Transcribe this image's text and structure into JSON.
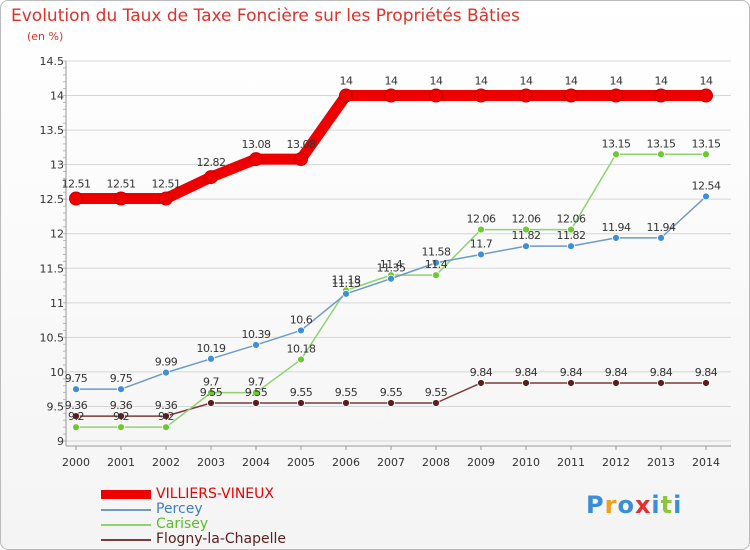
{
  "chart_data": {
    "type": "line",
    "title": "Evolution du Taux de Taxe Foncière sur les Propriétés Bâties",
    "subtitle": "(en %)",
    "xlabel": "",
    "ylabel": "",
    "ylim": [
      9,
      14.5
    ],
    "yticks": [
      "9",
      "9.5",
      "10",
      "10.5",
      "11",
      "11.5",
      "12",
      "12.5",
      "13",
      "13.5",
      "14",
      "14.5"
    ],
    "categories": [
      "2000",
      "2001",
      "2002",
      "2003",
      "2004",
      "2005",
      "2006",
      "2007",
      "2008",
      "2009",
      "2010",
      "2011",
      "2012",
      "2013",
      "2014"
    ],
    "series": [
      {
        "name": "VILLIERS-VINEUX",
        "color": "#ee0000",
        "values": [
          12.51,
          12.51,
          12.51,
          12.82,
          13.08,
          13.08,
          14,
          14,
          14,
          14,
          14,
          14,
          14,
          14,
          14
        ],
        "labels": [
          "12.51",
          "12.51",
          "12.51",
          "12.82",
          "13.08",
          "13.08",
          "14",
          "14",
          "14",
          "14",
          "14",
          "14",
          "14",
          "14",
          "14"
        ]
      },
      {
        "name": "Percey",
        "color": "#6e9bc9",
        "marker": "#3d8fd6",
        "values": [
          9.75,
          9.75,
          9.99,
          10.19,
          10.39,
          10.6,
          11.13,
          11.35,
          11.58,
          11.7,
          11.82,
          11.82,
          11.94,
          11.94,
          12.54
        ],
        "labels": [
          "9.75",
          "9.75",
          "9.99",
          "10.19",
          "10.39",
          "10.6",
          "11.13",
          "11.35",
          "11.58",
          "11.7",
          "11.82",
          "11.82",
          "11.94",
          "11.94",
          "12.54"
        ]
      },
      {
        "name": "Carisey",
        "color": "#8fd36f",
        "marker": "#6cc932",
        "values": [
          9.2,
          9.2,
          9.2,
          9.7,
          9.7,
          10.18,
          11.18,
          11.4,
          11.4,
          12.06,
          12.06,
          12.06,
          13.15,
          13.15,
          13.15
        ],
        "labels": [
          "9.2",
          "9.2",
          "9.2",
          "9.7",
          "9.7",
          "10.18",
          "11.18",
          "11.4",
          "11.4",
          "12.06",
          "12.06",
          "12.06",
          "13.15",
          "13.15",
          "13.15"
        ]
      },
      {
        "name": "Flogny-la-Chapelle",
        "color": "#7a3b3b",
        "marker": "#5a1e1e",
        "values": [
          9.36,
          9.36,
          9.36,
          9.55,
          9.55,
          9.55,
          9.55,
          9.55,
          9.55,
          9.84,
          9.84,
          9.84,
          9.84,
          9.84,
          9.84
        ],
        "labels": [
          "9.36",
          "9.36",
          "9.36",
          "9.55",
          "9.55",
          "9.55",
          "9.55",
          "9.55",
          "9.55",
          "9.84",
          "9.84",
          "9.84",
          "9.84",
          "9.84",
          "9.84"
        ]
      }
    ]
  },
  "logo": "Proxiti"
}
